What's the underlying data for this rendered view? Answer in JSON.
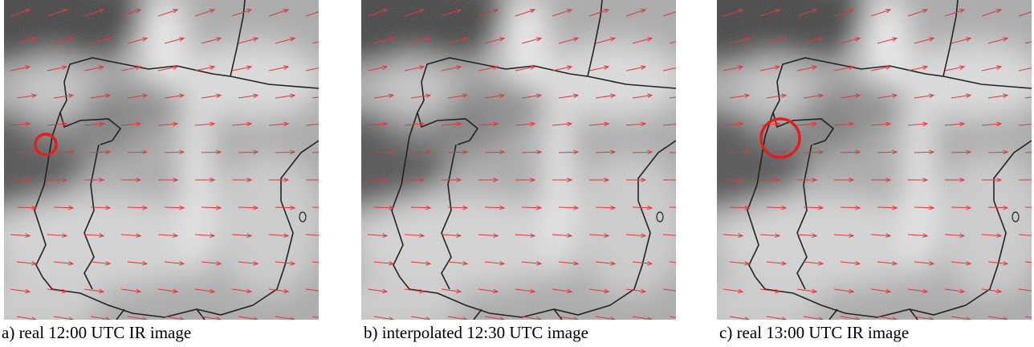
{
  "panels": [
    {
      "caption": "a) real 12:00 UTC IR image"
    },
    {
      "caption": "b) interpolated 12:30 UTC image"
    },
    {
      "caption": "c) real 13:00 UTC IR image"
    }
  ]
}
